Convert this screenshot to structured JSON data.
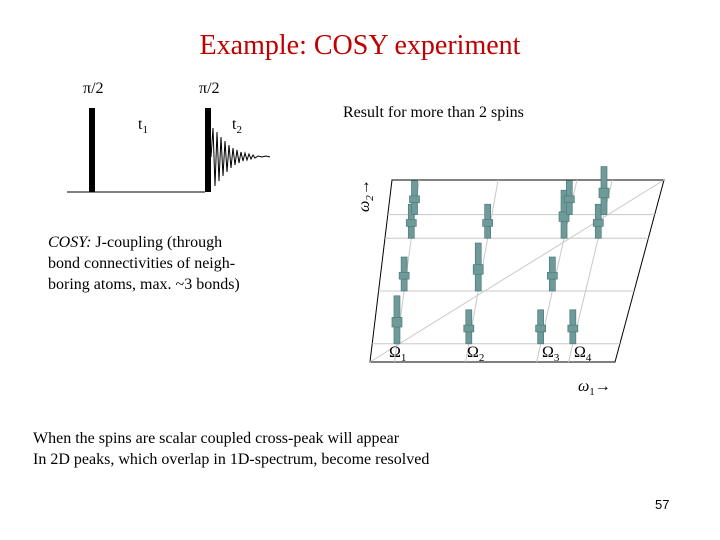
{
  "title": "Example: COSY experiment",
  "pulse_sequence": {
    "pulse1_label": "π/2",
    "pulse2_label": "π/2",
    "t1_base": "t",
    "t1_sub": "1",
    "t2_base": "t",
    "t2_sub": "2"
  },
  "result_label": "Result for more than 2 spins",
  "omega2_axis": {
    "symbol": "ω",
    "sub": "2",
    "arrow": "→"
  },
  "omega1_axis": {
    "symbol": "ω",
    "sub": "1",
    "arrow": "→"
  },
  "cosy_note": {
    "italic": "COSY:",
    "line1_rest": " J-coupling (through",
    "line2": "bond connectivities of neigh-",
    "line3": "boring atoms, max. ~3 bonds)"
  },
  "omega_labels": [
    {
      "base": "Ω",
      "sub": "1"
    },
    {
      "base": "Ω",
      "sub": "2"
    },
    {
      "base": "Ω",
      "sub": "3"
    },
    {
      "base": "Ω",
      "sub": "4"
    }
  ],
  "footer": {
    "line1": "When the spins are scalar coupled cross-peak will appear",
    "line2": "In 2D peaks, which overlap in 1D-spectrum, become resolved"
  },
  "page_number": "57",
  "colors": {
    "title": "#c00000",
    "peak": "#6f9a9a",
    "grid": "#c8c8c8"
  }
}
